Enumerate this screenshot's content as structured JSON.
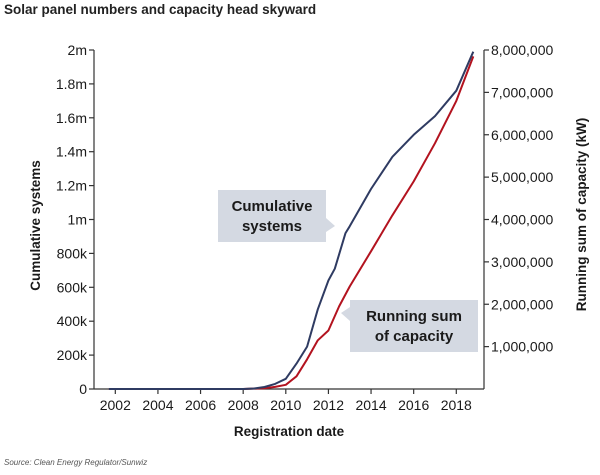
{
  "page": {
    "title": "Solar panel numbers and capacity head skyward",
    "source": "Source: Clean Energy Regulator/Sunwiz"
  },
  "chart_data": {
    "type": "line",
    "title": "Solar panel numbers and capacity head skyward",
    "xlabel": "Registration date",
    "ylabel_left": "Cumulative systems",
    "ylabel_right": "Running sum of capacity (kW)",
    "xlim": [
      2001,
      2019.3
    ],
    "ylim_left": [
      0,
      2000000
    ],
    "ylim_right": [
      0,
      8000000
    ],
    "x_ticks": [
      2002,
      2004,
      2006,
      2008,
      2010,
      2012,
      2014,
      2016,
      2018
    ],
    "x_tick_labels": [
      "2002",
      "2004",
      "2006",
      "2008",
      "2010",
      "2012",
      "2014",
      "2016",
      "2018"
    ],
    "y_left_ticks": [
      0,
      200000,
      400000,
      600000,
      800000,
      1000000,
      1200000,
      1400000,
      1600000,
      1800000,
      2000000
    ],
    "y_left_tick_labels": [
      "0",
      "200k",
      "400k",
      "600k",
      "800k",
      "1m",
      "1.2m",
      "1.4m",
      "1.6m",
      "1.8m",
      "2m"
    ],
    "y_right_ticks": [
      1000000,
      2000000,
      3000000,
      4000000,
      5000000,
      6000000,
      7000000,
      8000000
    ],
    "y_right_tick_labels": [
      "1,000,000",
      "2,000,000",
      "3,000,000",
      "4,000,000",
      "5,000,000",
      "6,000,000",
      "7,000,000",
      "8,000,000"
    ],
    "colors": {
      "systems": "#2f3b62",
      "capacity": "#b3131f",
      "callout_bg": "#d4d9e2",
      "axis": "#333333"
    },
    "series": [
      {
        "name": "Cumulative systems",
        "axis": "left",
        "points": [
          [
            2001.7,
            0
          ],
          [
            2004,
            0
          ],
          [
            2006,
            0
          ],
          [
            2008,
            0
          ],
          [
            2008.5,
            3000
          ],
          [
            2009,
            12000
          ],
          [
            2009.5,
            30000
          ],
          [
            2010,
            60000
          ],
          [
            2010.5,
            150000
          ],
          [
            2011,
            250000
          ],
          [
            2011.5,
            470000
          ],
          [
            2012,
            640000
          ],
          [
            2012.3,
            710000
          ],
          [
            2012.8,
            920000
          ],
          [
            2013,
            960000
          ],
          [
            2014,
            1180000
          ],
          [
            2015,
            1370000
          ],
          [
            2016,
            1500000
          ],
          [
            2017,
            1610000
          ],
          [
            2018,
            1760000
          ],
          [
            2018.8,
            1990000
          ]
        ]
      },
      {
        "name": "Running sum of capacity",
        "axis": "right",
        "points": [
          [
            2001.7,
            0
          ],
          [
            2004,
            0
          ],
          [
            2006,
            0
          ],
          [
            2008,
            0
          ],
          [
            2009,
            20000
          ],
          [
            2009.5,
            50000
          ],
          [
            2010,
            100000
          ],
          [
            2010.5,
            300000
          ],
          [
            2011,
            700000
          ],
          [
            2011.5,
            1150000
          ],
          [
            2012,
            1380000
          ],
          [
            2012.5,
            1950000
          ],
          [
            2013,
            2420000
          ],
          [
            2014,
            3250000
          ],
          [
            2015,
            4100000
          ],
          [
            2016,
            4900000
          ],
          [
            2017,
            5800000
          ],
          [
            2018,
            6800000
          ],
          [
            2018.8,
            7850000
          ]
        ]
      }
    ],
    "annotations": [
      {
        "series": "Cumulative systems",
        "lines": [
          "Cumulative",
          "systems"
        ]
      },
      {
        "series": "Running sum of capacity",
        "lines": [
          "Running sum",
          "of capacity"
        ]
      }
    ]
  }
}
